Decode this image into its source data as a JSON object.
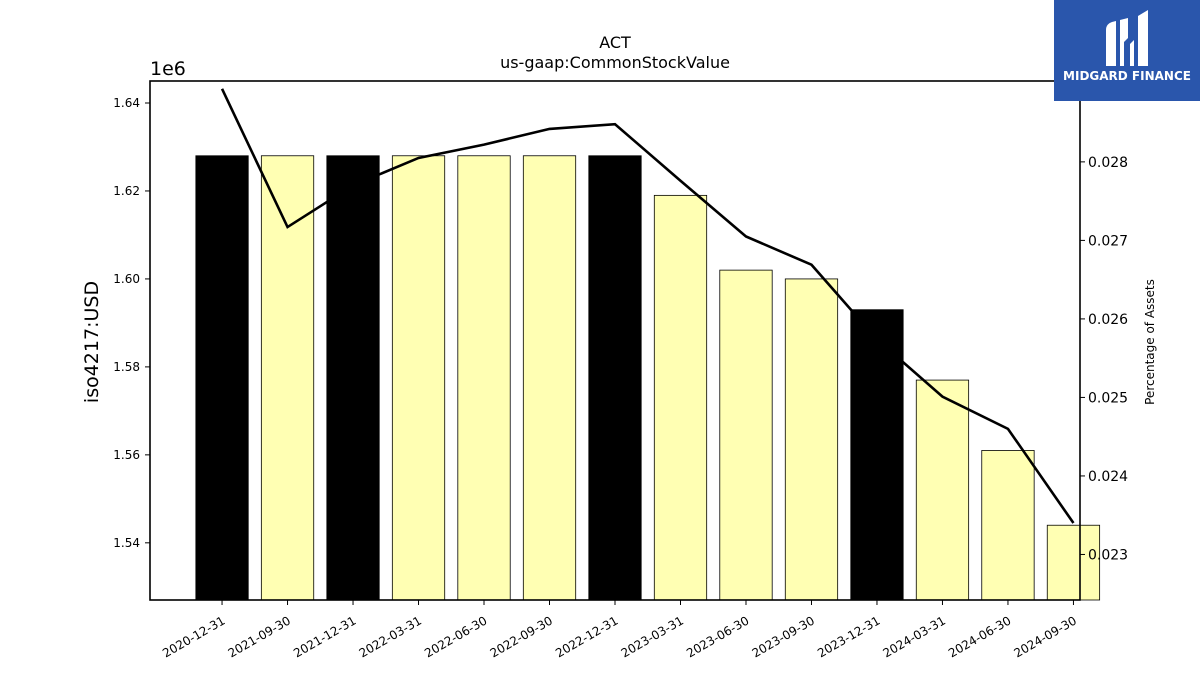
{
  "chart_data": {
    "type": "bar",
    "title": "ACT",
    "subtitle": "us-gaap:CommonStockValue",
    "ylabel": "iso4217:USD",
    "y2label": "Percentage of Assets",
    "y_offset_text": "1e6",
    "categories": [
      "2020-12-31",
      "2021-09-30",
      "2021-12-31",
      "2022-03-31",
      "2022-06-30",
      "2022-09-30",
      "2022-12-31",
      "2023-03-31",
      "2023-06-30",
      "2023-09-30",
      "2023-12-31",
      "2024-03-31",
      "2024-06-30",
      "2024-09-30"
    ],
    "values": [
      1628000,
      1628000,
      1628000,
      1628000,
      1628000,
      1628000,
      1628000,
      1619000,
      1602000,
      1600000,
      1593000,
      1577000,
      1561000,
      1544000
    ],
    "bar_colors": [
      "#000000",
      "#ffffb3",
      "#000000",
      "#ffffb3",
      "#ffffb3",
      "#ffffb3",
      "#000000",
      "#ffffb3",
      "#ffffb3",
      "#ffffb3",
      "#000000",
      "#ffffb3",
      "#ffffb3",
      "#ffffb3"
    ],
    "line_values": [
      0.02893,
      0.02717,
      0.0277,
      0.02805,
      0.02822,
      0.02842,
      0.02848,
      0.02776,
      0.02705,
      0.02669,
      0.02574,
      0.02501,
      0.0246,
      0.0234
    ],
    "line_color": "#000000",
    "ylim": [
      1527000,
      1645000
    ],
    "y_ticks": [
      1540000,
      1560000,
      1580000,
      1600000,
      1620000,
      1640000
    ],
    "y_tick_labels": [
      "1.54",
      "1.56",
      "1.58",
      "1.60",
      "1.62",
      "1.64"
    ],
    "y2lim": [
      0.02242,
      0.02903
    ],
    "y2_ticks": [
      0.023,
      0.024,
      0.025,
      0.026,
      0.027,
      0.028
    ],
    "y2_tick_labels": [
      "0.023",
      "0.024",
      "0.025",
      "0.026",
      "0.027",
      "0.028"
    ],
    "grid": false
  },
  "logo": {
    "text": "MIDGARD FINANCE",
    "background": "#2a56ac"
  }
}
